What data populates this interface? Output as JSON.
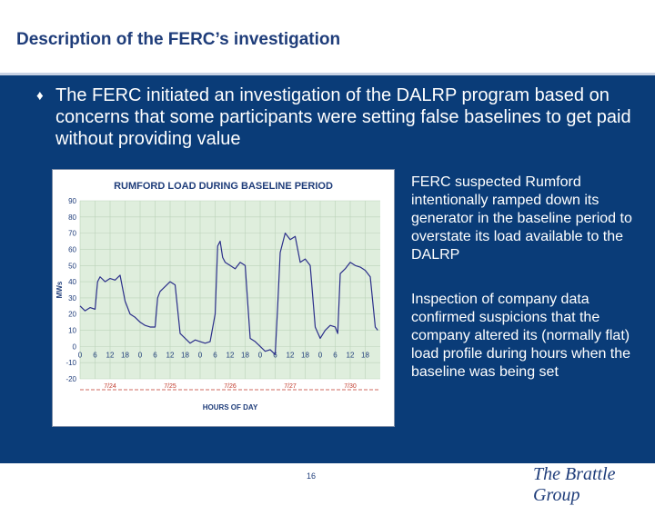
{
  "slide": {
    "title": "Description of the FERC’s investigation",
    "bullet_glyph": "♦",
    "bullet_text": "The FERC initiated an investigation of the DALRP program based on concerns that some participants were setting false baselines to get paid without providing value",
    "side_text_1": "FERC suspected Rumford intentionally ramped down its generator in the baseline period to overstate its load available to the DALRP",
    "side_text_2": "Inspection of company data confirmed suspicions that the company altered its (normally flat) load  profile during hours when the baseline was being set",
    "page_number": "16",
    "logo_text": "The Brattle Group"
  },
  "chart_data": {
    "type": "line",
    "title": "RUMFORD LOAD DURING BASELINE PERIOD",
    "xlabel": "HOURS OF DAY",
    "ylabel": "MWs",
    "ylim": [
      -20,
      90
    ],
    "yticks": [
      "90",
      "80",
      "70",
      "60",
      "50",
      "40",
      "30",
      "20",
      "10",
      "0",
      "-10",
      "-20"
    ],
    "xticks": [
      "0",
      "6",
      "12",
      "18",
      "0",
      "6",
      "12",
      "18",
      "0",
      "6",
      "12",
      "18",
      "0",
      "6",
      "12",
      "18",
      "0",
      "6",
      "12",
      "18"
    ],
    "dates": [
      "7/24",
      "7/25",
      "7/26",
      "7/27",
      "7/30"
    ],
    "grid": true,
    "series": [
      {
        "color": "#2b2f8a",
        "x": [
          0,
          2,
          4,
          6,
          7,
          8,
          10,
          12,
          14,
          16,
          18,
          20,
          22,
          24,
          26,
          28,
          30,
          31,
          32,
          34,
          36,
          38,
          40,
          42,
          44,
          46,
          48,
          50,
          52,
          54,
          55,
          56,
          57,
          58,
          60,
          62,
          64,
          66,
          68,
          70,
          72,
          74,
          76,
          78,
          79,
          80,
          82,
          84,
          86,
          88,
          90,
          92,
          94,
          96,
          98,
          100,
          102,
          103,
          104,
          106,
          108,
          110,
          112,
          114,
          116,
          118,
          119
        ],
        "values": [
          25,
          22,
          24,
          23,
          40,
          43,
          40,
          42,
          41,
          44,
          28,
          20,
          18,
          15,
          13,
          12,
          12,
          30,
          34,
          37,
          40,
          38,
          8,
          5,
          2,
          4,
          3,
          2,
          3,
          20,
          62,
          65,
          55,
          52,
          50,
          48,
          52,
          50,
          5,
          3,
          0,
          -3,
          -2,
          -5,
          25,
          58,
          70,
          66,
          68,
          52,
          54,
          50,
          12,
          5,
          10,
          13,
          12,
          8,
          45,
          48,
          52,
          50,
          49,
          47,
          43,
          12,
          10
        ]
      }
    ]
  }
}
